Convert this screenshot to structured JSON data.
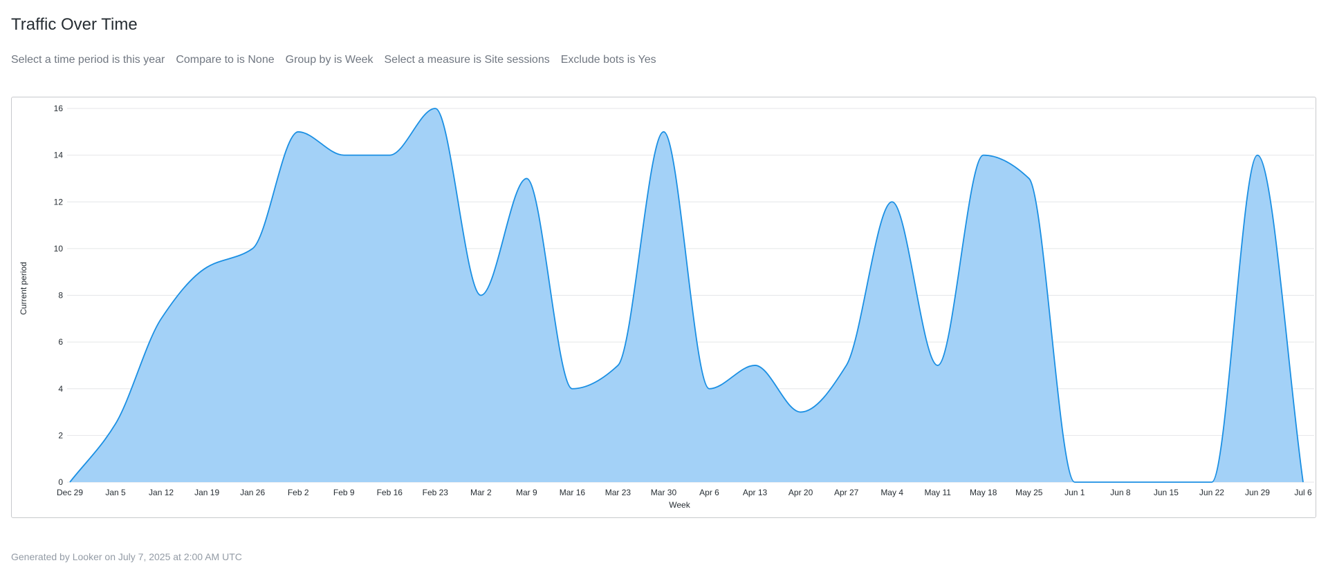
{
  "page": {
    "title": "Traffic Over Time",
    "filters": [
      "Select a time period is this year",
      "Compare to is None",
      "Group by is Week",
      "Select a measure is Site sessions",
      "Exclude bots is Yes"
    ],
    "footer": "Generated by Looker on July 7, 2025 at 2:00 AM UTC"
  },
  "chart_data": {
    "type": "area",
    "xlabel": "Week",
    "ylabel": "Current period",
    "ylim": [
      0,
      16
    ],
    "yticks": [
      0,
      2,
      4,
      6,
      8,
      10,
      12,
      14,
      16
    ],
    "grid": true,
    "categories": [
      "Dec 29",
      "Jan 5",
      "Jan 12",
      "Jan 19",
      "Jan 26",
      "Feb 2",
      "Feb 9",
      "Feb 16",
      "Feb 23",
      "Mar 2",
      "Mar 9",
      "Mar 16",
      "Mar 23",
      "Mar 30",
      "Apr 6",
      "Apr 13",
      "Apr 20",
      "Apr 27",
      "May 4",
      "May 11",
      "May 18",
      "May 25",
      "Jun 1",
      "Jun 8",
      "Jun 15",
      "Jun 22",
      "Jun 29",
      "Jul 6"
    ],
    "series": [
      {
        "values": [
          0,
          2.5,
          7,
          9.2,
          10,
          15,
          14,
          14,
          16,
          8,
          13,
          4,
          5,
          15,
          4,
          5,
          3,
          5,
          12,
          5,
          14,
          13,
          0,
          0,
          0,
          0,
          14,
          0
        ]
      }
    ],
    "colors": {
      "fill": "#a3d1f7",
      "line": "#1a8fe3",
      "grid": "#e4e6e8",
      "axis_text": "#262d33"
    }
  }
}
